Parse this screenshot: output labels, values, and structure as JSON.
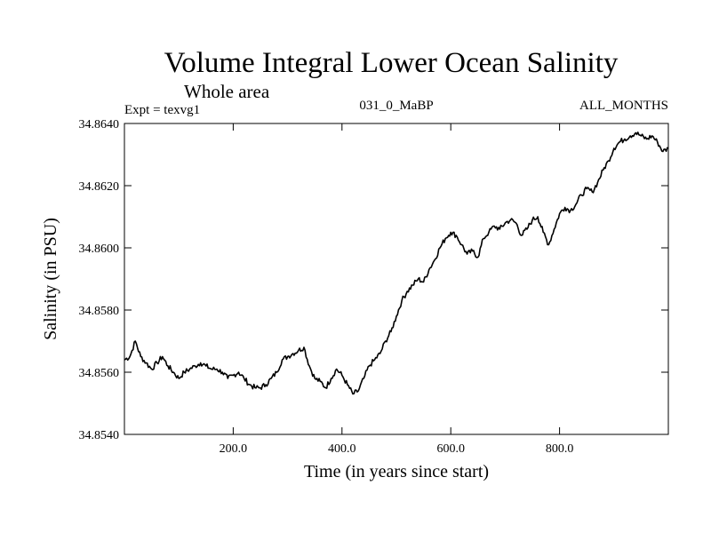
{
  "chart_data": {
    "type": "line",
    "title": "Volume Integral Lower Ocean Salinity",
    "subtitle": "Whole area",
    "experiment": "Expt = texvg1",
    "run_label": "031_0_MaBP",
    "months_label": "ALL_MONTHS",
    "xlabel": "Time (in years since start)",
    "ylabel": "Salinity (in PSU)",
    "xlim": [
      0,
      1000
    ],
    "ylim": [
      34.854,
      34.864
    ],
    "x_ticks": [
      200.0,
      400.0,
      600.0,
      800.0
    ],
    "x_tick_labels": [
      "200.0",
      "400.0",
      "600.0",
      "800.0"
    ],
    "y_ticks": [
      34.854,
      34.856,
      34.858,
      34.86,
      34.862,
      34.864
    ],
    "y_tick_labels": [
      "34.8540",
      "34.8560",
      "34.8580",
      "34.8600",
      "34.8620",
      "34.8640"
    ],
    "grid": false,
    "series": [
      {
        "name": "Salinity",
        "x": [
          0,
          10,
          20,
          30,
          40,
          50,
          60,
          70,
          80,
          90,
          100,
          110,
          120,
          130,
          140,
          150,
          160,
          170,
          180,
          190,
          200,
          210,
          220,
          230,
          240,
          250,
          260,
          270,
          280,
          290,
          300,
          310,
          320,
          330,
          340,
          350,
          360,
          370,
          380,
          390,
          400,
          410,
          420,
          430,
          440,
          450,
          460,
          470,
          480,
          490,
          500,
          510,
          520,
          530,
          540,
          550,
          560,
          570,
          580,
          590,
          600,
          610,
          620,
          630,
          640,
          650,
          660,
          670,
          680,
          690,
          700,
          710,
          720,
          730,
          740,
          750,
          760,
          770,
          780,
          790,
          800,
          810,
          820,
          830,
          840,
          850,
          860,
          870,
          880,
          890,
          900,
          910,
          920,
          930,
          940,
          950,
          960,
          970,
          980,
          990,
          1000
        ],
        "values": [
          34.8564,
          34.8565,
          34.857,
          34.8565,
          34.8563,
          34.8561,
          34.8563,
          34.8565,
          34.8562,
          34.856,
          34.8558,
          34.856,
          34.8561,
          34.8562,
          34.8563,
          34.8562,
          34.8561,
          34.8561,
          34.856,
          34.8558,
          34.8559,
          34.856,
          34.8558,
          34.8556,
          34.8555,
          34.8555,
          34.8556,
          34.8558,
          34.856,
          34.8564,
          34.8565,
          34.8566,
          34.8567,
          34.8568,
          34.8562,
          34.8558,
          34.8557,
          34.8555,
          34.8558,
          34.8561,
          34.8559,
          34.8556,
          34.8553,
          34.8554,
          34.8558,
          34.8562,
          34.8564,
          34.8566,
          34.857,
          34.8573,
          34.8578,
          34.8583,
          34.8586,
          34.8588,
          34.859,
          34.8589,
          34.8593,
          34.8596,
          34.86,
          34.8603,
          34.8605,
          34.8604,
          34.8601,
          34.8598,
          34.8599,
          34.8597,
          34.8603,
          34.8605,
          34.8607,
          34.8606,
          34.8608,
          34.8609,
          34.8608,
          34.8604,
          34.8606,
          34.8609,
          34.861,
          34.8605,
          34.8601,
          34.8606,
          34.8611,
          34.8613,
          34.8612,
          34.8614,
          34.8617,
          34.8619,
          34.8618,
          34.8621,
          34.8625,
          34.8628,
          34.8632,
          34.8634,
          34.8635,
          34.8636,
          34.8637,
          34.8636,
          34.8635,
          34.8636,
          34.8634,
          34.8631,
          34.8632
        ]
      }
    ]
  }
}
